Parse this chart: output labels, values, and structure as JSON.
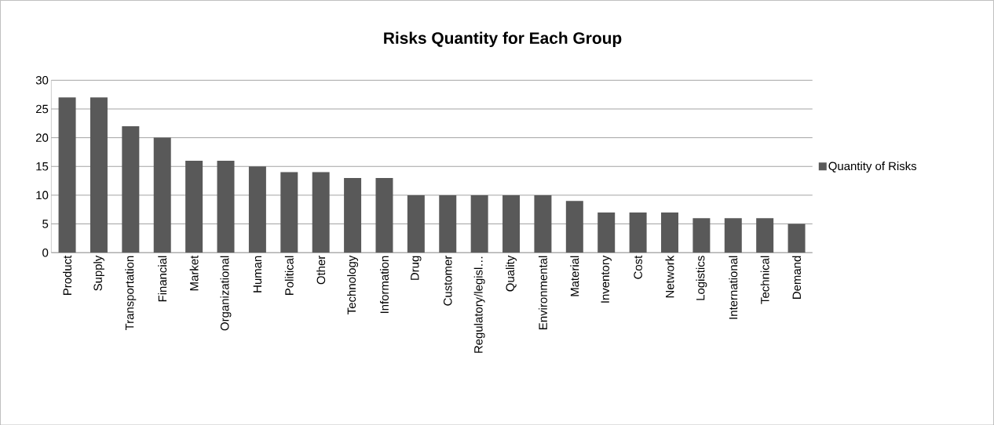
{
  "chart_data": {
    "type": "bar",
    "title": "Risks Quantity for Each Group",
    "categories": [
      "Product",
      "Supply",
      "Transportation",
      "Financial",
      "Market",
      "Organizational",
      "Human",
      "Political",
      "Other",
      "Technology",
      "Information",
      "Drug",
      "Customer",
      "Regulatory/legisl…",
      "Quality",
      "Environmental",
      "Material",
      "Inventory",
      "Cost",
      "Network",
      "Logistics",
      "International",
      "Technical",
      "Demand"
    ],
    "series": [
      {
        "name": "Quantity of Risks",
        "color": "#595959",
        "values": [
          27,
          27,
          22,
          20,
          16,
          16,
          15,
          14,
          14,
          13,
          13,
          10,
          10,
          10,
          10,
          10,
          9,
          7,
          7,
          7,
          6,
          6,
          6,
          5
        ]
      }
    ],
    "ylim": [
      0,
      30
    ],
    "yticks": [
      0,
      5,
      10,
      15,
      20,
      25,
      30
    ],
    "grid": "y",
    "legend": "right"
  }
}
